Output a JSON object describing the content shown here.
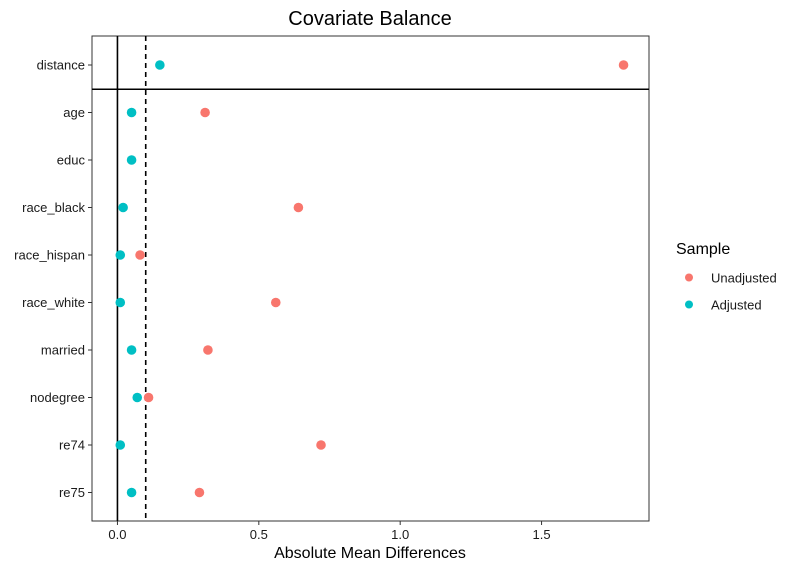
{
  "chart_data": {
    "type": "scatter",
    "title": "Covariate Balance",
    "xlabel": "Absolute Mean Differences",
    "ylabel": "",
    "xlim": [
      -0.09,
      1.88
    ],
    "x_ticks": [
      0.0,
      0.5,
      1.0,
      1.5
    ],
    "x_tick_labels": [
      "0.0",
      "0.5",
      "1.0",
      "1.5"
    ],
    "threshold": 0.1,
    "reference_line": 0,
    "grid": false,
    "legend": {
      "title": "Sample",
      "position": "right"
    },
    "categories": [
      "distance",
      "age",
      "educ",
      "race_black",
      "race_hispan",
      "race_white",
      "married",
      "nodegree",
      "re74",
      "re75"
    ],
    "series": [
      {
        "name": "Unadjusted",
        "color": "#F8766D",
        "values": [
          1.79,
          0.31,
          null,
          0.64,
          0.08,
          0.56,
          0.32,
          0.11,
          0.72,
          0.29
        ]
      },
      {
        "name": "Adjusted",
        "color": "#00BFC4",
        "values": [
          0.15,
          0.05,
          0.05,
          0.02,
          0.01,
          0.01,
          0.05,
          0.07,
          0.01,
          0.05
        ]
      }
    ]
  }
}
